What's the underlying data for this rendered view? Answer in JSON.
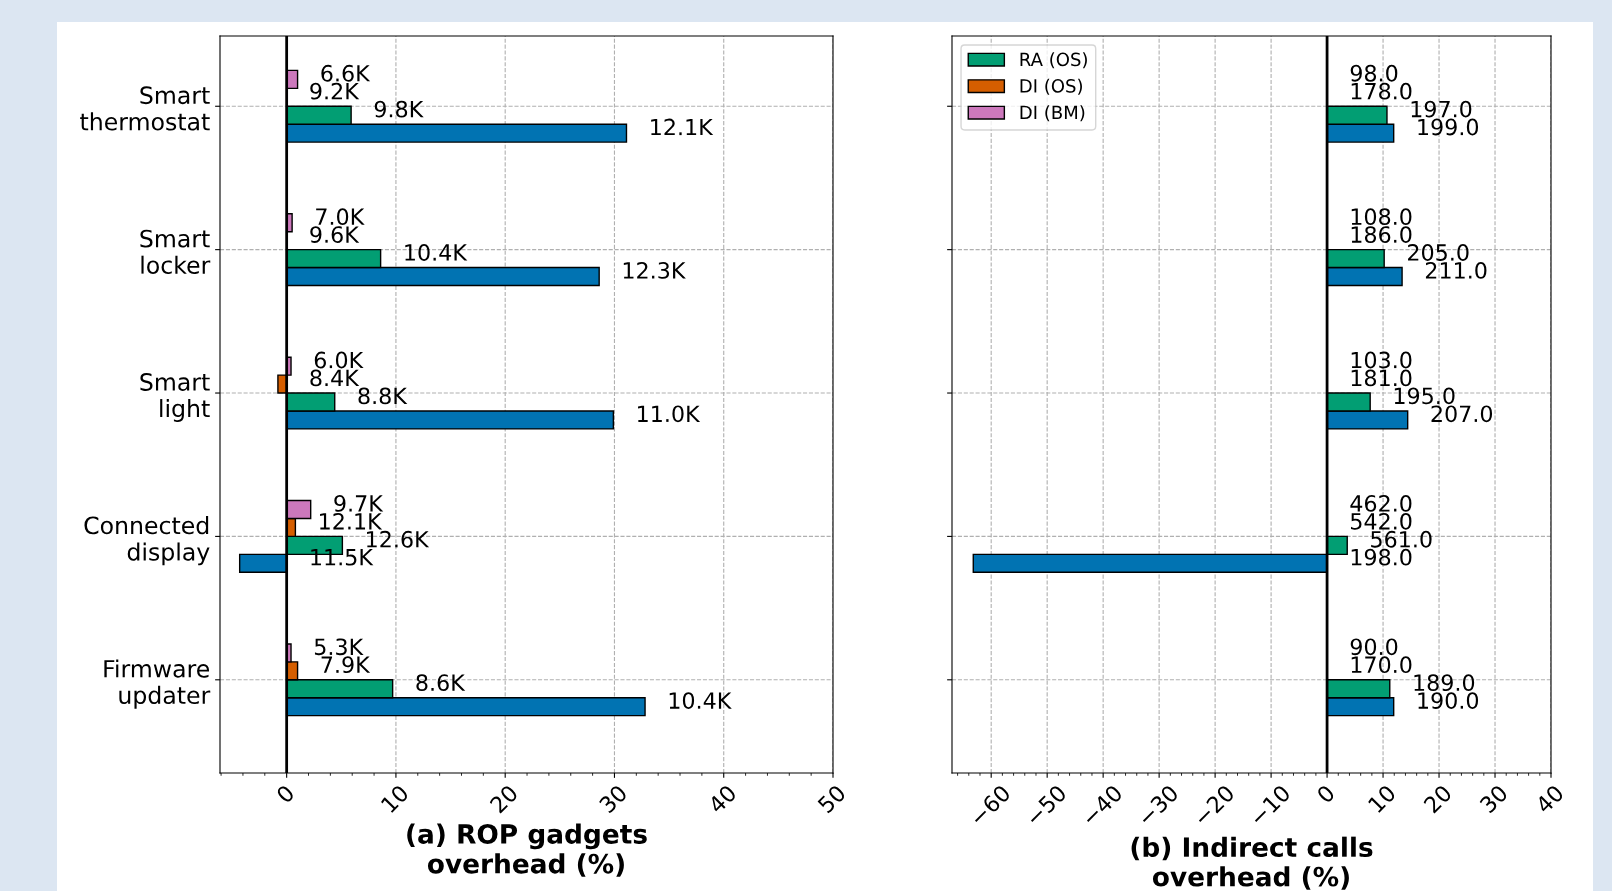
{
  "chart_data": [
    {
      "type": "bar",
      "orientation": "horizontal",
      "xlabel": "(a) ROP gadgets\noverhead (%)",
      "categories": [
        "Smart\nthermostat",
        "Smart\nlocker",
        "Smart\nlight",
        "Connected\ndisplay",
        "Firmware\nupdater"
      ],
      "series": [
        {
          "color": "#0173b2",
          "values": [
            31.1,
            28.6,
            29.9,
            -4.3,
            32.8
          ]
        },
        {
          "color": "#029e73",
          "values": [
            5.9,
            8.6,
            4.4,
            5.1,
            9.7
          ]
        },
        {
          "color": "#d55e00",
          "values": [
            0,
            0,
            -0.8,
            0.8,
            1.0
          ]
        },
        {
          "color": "#cc78bc",
          "values": [
            1.0,
            0.5,
            0.4,
            2.2,
            0.4
          ]
        }
      ],
      "annotations": [
        "12.1K",
        "12.3K",
        "11.0K",
        "11.5K",
        "10.4K",
        "9.8K",
        "10.4K",
        "8.8K",
        "12.6K",
        "8.6K",
        "9.2K",
        "9.6K",
        "8.4K",
        "12.1K",
        "7.9K",
        "6.6K",
        "7.0K",
        "6.0K",
        "9.7K",
        "5.3K"
      ],
      "xlim": [
        -6.1,
        50
      ],
      "xticks": [
        0,
        10,
        20,
        30,
        40,
        50
      ],
      "grid": true,
      "ref_lines": [
        {
          "axis": "x",
          "value": 0,
          "color": "#000000"
        }
      ]
    },
    {
      "type": "bar",
      "orientation": "horizontal",
      "xlabel": "(b) Indirect calls\noverhead (%)",
      "categories": [
        null,
        null,
        null,
        null,
        null
      ],
      "series": [
        {
          "color": "#0173b2",
          "values": [
            11.9,
            13.4,
            14.4,
            -63.2,
            11.9
          ]
        },
        {
          "name": "RA (OS)",
          "color": "#029e73",
          "values": [
            10.7,
            10.2,
            7.7,
            3.6,
            11.2
          ]
        },
        {
          "name": "DI (OS)",
          "color": "#d55e00",
          "values": [
            0,
            0,
            0,
            0,
            0
          ]
        },
        {
          "name": "DI (BM)",
          "color": "#cc78bc",
          "values": [
            0,
            0,
            0,
            0,
            0
          ]
        }
      ],
      "annotations": [
        "199.0",
        "211.0",
        "207.0",
        "198.0",
        "190.0",
        "197.0",
        "205.0",
        "195.0",
        "561.0",
        "189.0",
        "178.0",
        "186.0",
        "181.0",
        "542.0",
        "170.0",
        "98.0",
        "108.0",
        "103.0",
        "462.0",
        "90.0"
      ],
      "xlim": [
        -67,
        40
      ],
      "xticks": [
        {
          "value": -60,
          "label": "−60"
        },
        {
          "value": -50,
          "label": "−50"
        },
        {
          "value": -40,
          "label": "−40"
        },
        {
          "value": -30,
          "label": "−30"
        },
        {
          "value": -20,
          "label": "−20"
        },
        {
          "value": -10,
          "label": "−10"
        },
        0,
        10,
        20,
        30,
        40
      ],
      "grid": true,
      "legend": "top left",
      "tick_labels": "x",
      "ref_lines": [
        {
          "axis": "x",
          "value": 0,
          "color": "#000000"
        }
      ]
    }
  ]
}
